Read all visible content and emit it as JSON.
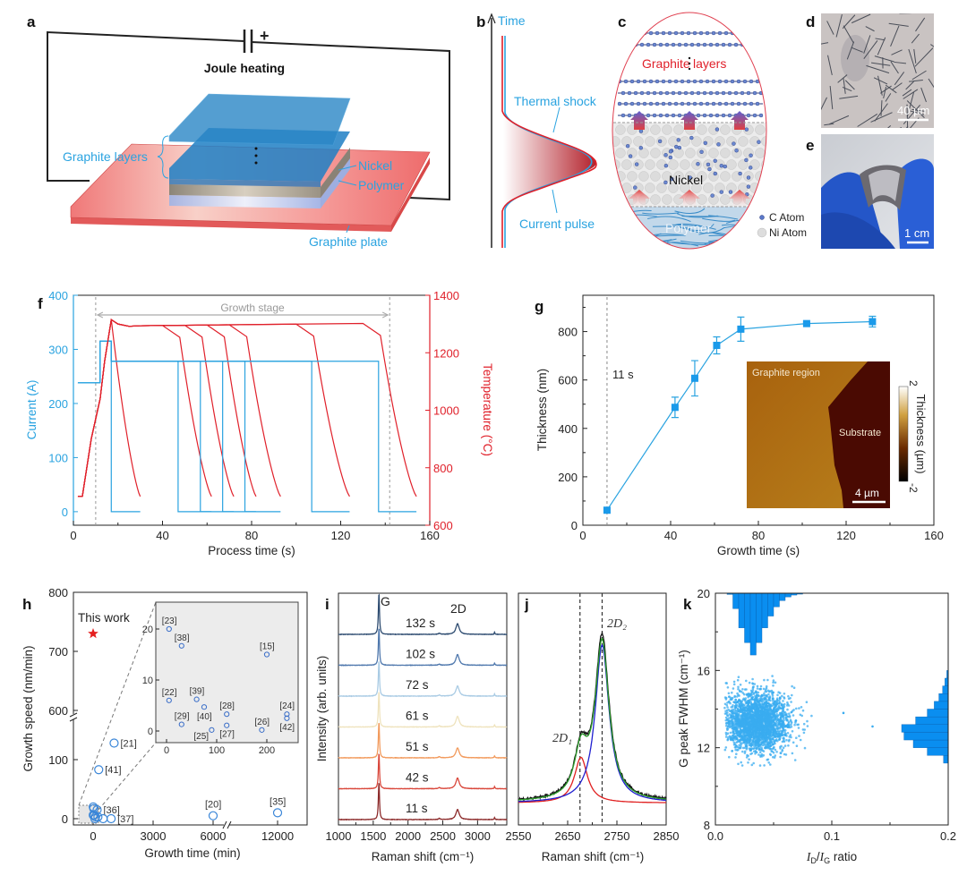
{
  "colors": {
    "cyan": "#2aa3e0",
    "red": "#e0202a",
    "inset_gray": "#ececec",
    "hist_blue": "#0a8ef0"
  },
  "panel_a": {
    "label": "a",
    "battery_sign": "+",
    "title": "Joule heating",
    "graphite_layers": "Graphite layers",
    "nickel": "Nickel",
    "polymer": "Polymer",
    "graphite_plate": "Graphite plate"
  },
  "panel_b": {
    "label": "b",
    "axis": "Time",
    "thermal_shock": "Thermal shock",
    "current_pulse": "Current pulse"
  },
  "panel_c": {
    "label": "c",
    "graphite_layers": "Graphite",
    "graphite_layers_2": "layers",
    "nickel": "Nickel",
    "polymer": "Polymer",
    "legend_c": "C Atom",
    "legend_ni": "Ni Atom"
  },
  "panel_d": {
    "label": "d",
    "scale": "40 µm"
  },
  "panel_e": {
    "label": "e",
    "scale": "1 cm"
  },
  "chart_data": [
    {
      "panel": "f",
      "type": "line",
      "xlabel": "Process time (s)",
      "ylabel": "Current (A)",
      "ylabel_right": "Temperature (°C)",
      "xlim": [
        0,
        160
      ],
      "ylim": [
        -25,
        400
      ],
      "ylim_right": [
        600,
        1400
      ],
      "xticks": [
        "0",
        "40",
        "80",
        "120",
        "160"
      ],
      "yticks": [
        "0",
        "100",
        "200",
        "300",
        "400"
      ],
      "yticks_right": [
        "600",
        "800",
        "1000",
        "1200",
        "1400"
      ],
      "annotation": "Growth stage",
      "growth_stage": [
        10,
        142
      ],
      "current": {
        "preheat": 238,
        "pulse": 315,
        "hold": 278,
        "pulse_start": 12,
        "pulse_end": 17
      },
      "temperature": {
        "start": 700,
        "peak": 1315,
        "plateau": 1300
      },
      "runs": [
        {
          "cutoff": 17,
          "end": 30
        },
        {
          "cutoff": 47,
          "end": 62
        },
        {
          "cutoff": 57,
          "end": 72
        },
        {
          "cutoff": 67,
          "end": 82
        },
        {
          "cutoff": 77,
          "end": 93
        },
        {
          "cutoff": 107,
          "end": 124
        },
        {
          "cutoff": 137,
          "end": 154
        }
      ]
    },
    {
      "panel": "g",
      "type": "line",
      "xlabel": "Growth time (s)",
      "ylabel": "Thickness (nm)",
      "xlim": [
        0,
        160
      ],
      "ylim": [
        0,
        950
      ],
      "xticks": [
        "0",
        "40",
        "80",
        "120",
        "160"
      ],
      "yticks": [
        "0",
        "200",
        "400",
        "600",
        "800"
      ],
      "annotation": "11 s",
      "points": [
        {
          "x": 11,
          "y": 62,
          "err": 0
        },
        {
          "x": 42,
          "y": 487,
          "err": 42
        },
        {
          "x": 51,
          "y": 607,
          "err": 73
        },
        {
          "x": 61,
          "y": 743,
          "err": 35
        },
        {
          "x": 72,
          "y": 810,
          "err": 50
        },
        {
          "x": 102,
          "y": 833,
          "err": 5
        },
        {
          "x": 132,
          "y": 841,
          "err": 22
        }
      ],
      "inset": {
        "region_left": "Graphite region",
        "region_right": "Substrate",
        "scale": "4 µm",
        "colorbar_label": "Thickness (µm)",
        "colorbar_max": "2",
        "colorbar_min": "-2"
      }
    },
    {
      "panel": "h",
      "type": "scatter",
      "xlabel": "Growth time (min)",
      "ylabel": "Growth speed (nm/min)",
      "xticks": [
        "0",
        "3000",
        "6000",
        "12000"
      ],
      "yticks": [
        "0",
        "100",
        "600",
        "700",
        "800"
      ],
      "axis_breaks": {
        "x": [
          6600,
          9850
        ],
        "y": [
          170,
          580
        ]
      },
      "this_work": {
        "label": "This work",
        "x": 1,
        "y": 730
      },
      "points": [
        {
          "label": "[21]",
          "x": 1050,
          "y": 128
        },
        {
          "label": "[41]",
          "x": 280,
          "y": 83
        },
        {
          "label": "[36]",
          "x": 200,
          "y": 15
        },
        {
          "label": "[37]",
          "x": 900,
          "y": 0
        },
        {
          "label": "[20]",
          "x": 6000,
          "y": 5
        },
        {
          "label": "[35]",
          "x": 12000,
          "y": 10
        },
        {
          "label": "",
          "x": 5,
          "y": 20
        },
        {
          "label": "",
          "x": 30,
          "y": 17
        },
        {
          "label": "",
          "x": 60,
          "y": 6
        },
        {
          "label": "",
          "x": 90,
          "y": 0
        },
        {
          "label": "",
          "x": 120,
          "y": 3
        },
        {
          "label": "",
          "x": 240,
          "y": 3
        },
        {
          "label": "",
          "x": 500,
          "y": 0
        },
        {
          "label": "",
          "x": 5,
          "y": 6
        }
      ],
      "inset": {
        "xticks": [
          "0",
          "100",
          "200"
        ],
        "yticks": [
          "0",
          "10",
          "20"
        ],
        "points": [
          {
            "label": "[23]",
            "x": 5,
            "y": 20
          },
          {
            "label": "[38]",
            "x": 30,
            "y": 16.7
          },
          {
            "label": "[15]",
            "x": 200,
            "y": 15
          },
          {
            "label": "[22]",
            "x": 5,
            "y": 6
          },
          {
            "label": "[39]",
            "x": 60,
            "y": 6.2
          },
          {
            "label": "[40]",
            "x": 75,
            "y": 4.7
          },
          {
            "label": "[28]",
            "x": 120,
            "y": 3.3
          },
          {
            "label": "[24]",
            "x": 240,
            "y": 3.3
          },
          {
            "label": "[42]",
            "x": 240,
            "y": 2.5
          },
          {
            "label": "[29]",
            "x": 30,
            "y": 1.3
          },
          {
            "label": "[25]",
            "x": 90,
            "y": 0.2
          },
          {
            "label": "[27]",
            "x": 120,
            "y": 1.1
          },
          {
            "label": "[26]",
            "x": 190,
            "y": 0.2
          }
        ]
      }
    },
    {
      "panel": "i",
      "type": "line",
      "xlabel": "Raman shift (cm⁻¹)",
      "ylabel": "Intensity (arb. units)",
      "xlim": [
        1000,
        3420
      ],
      "xticks": [
        "1000",
        "1500",
        "2000",
        "2500",
        "3000"
      ],
      "peak_labels": [
        "G",
        "2D"
      ],
      "spectra": [
        {
          "label": "11 s",
          "color": "#8c2a2a",
          "G": 1.05,
          "D2": 0.28
        },
        {
          "label": "42 s",
          "color": "#d9473b",
          "G": 1.0,
          "D2": 0.3
        },
        {
          "label": "51 s",
          "color": "#f29a5c",
          "G": 1.0,
          "D2": 0.28
        },
        {
          "label": "61 s",
          "color": "#efe3bd",
          "G": 1.0,
          "D2": 0.3
        },
        {
          "label": "72 s",
          "color": "#a9cbe4",
          "G": 1.0,
          "D2": 0.28
        },
        {
          "label": "102 s",
          "color": "#4f78ad",
          "G": 1.05,
          "D2": 0.3
        },
        {
          "label": "132 s",
          "color": "#2d4b70",
          "G": 1.15,
          "D2": 0.3
        }
      ]
    },
    {
      "panel": "j",
      "type": "line",
      "xlabel": "Raman shift (cm⁻¹)",
      "xlim": [
        2550,
        2850
      ],
      "ylim": [
        -0.12,
        1.2
      ],
      "xticks": [
        "2550",
        "2650",
        "2750",
        "2850"
      ],
      "peak_labels": [
        "2D₁",
        "2D₂"
      ],
      "components": [
        {
          "name": "2D₁",
          "center": 2677,
          "amplitude": 0.26,
          "hwhm": 16,
          "color": "#e02020"
        },
        {
          "name": "2D₂",
          "center": 2720,
          "amplitude": 0.9,
          "hwhm": 17,
          "color": "#2020d0"
        }
      ],
      "measured_color": "#111111",
      "fit_color": "#2a9a2a",
      "dashed_lines": [
        2675,
        2720
      ]
    },
    {
      "panel": "k",
      "type": "scatter",
      "xlabel_parts": [
        "I",
        "D",
        "/",
        "I",
        "G",
        " ratio"
      ],
      "ylabel": "G peak FWHM (cm⁻¹)",
      "xlim": [
        0,
        0.2
      ],
      "ylim": [
        8,
        20
      ],
      "xticks": [
        "0.0",
        "0.1",
        "0.2"
      ],
      "yticks": [
        "8",
        "12",
        "16",
        "20"
      ],
      "cluster": {
        "mode": [
          0.035,
          13.2
        ],
        "x_range": [
          0.008,
          0.095
        ],
        "y_range": [
          11.0,
          17.3
        ]
      },
      "outliers": [
        [
          0.11,
          13.8
        ],
        [
          0.135,
          13.1
        ]
      ],
      "hist_x": {
        "bin_start": 0.01,
        "bin_width": 0.005,
        "rel_freq": [
          0.02,
          0.25,
          0.56,
          0.8,
          1.0,
          0.8,
          0.56,
          0.37,
          0.22,
          0.12,
          0.06,
          0.03,
          0.015
        ]
      },
      "hist_y": {
        "bin_start": 11.2,
        "bin_width": 0.4,
        "rel_freq": [
          0.1,
          0.45,
          0.75,
          0.95,
          1.0,
          0.7,
          0.45,
          0.3,
          0.2,
          0.12,
          0.07,
          0.03
        ]
      }
    }
  ]
}
